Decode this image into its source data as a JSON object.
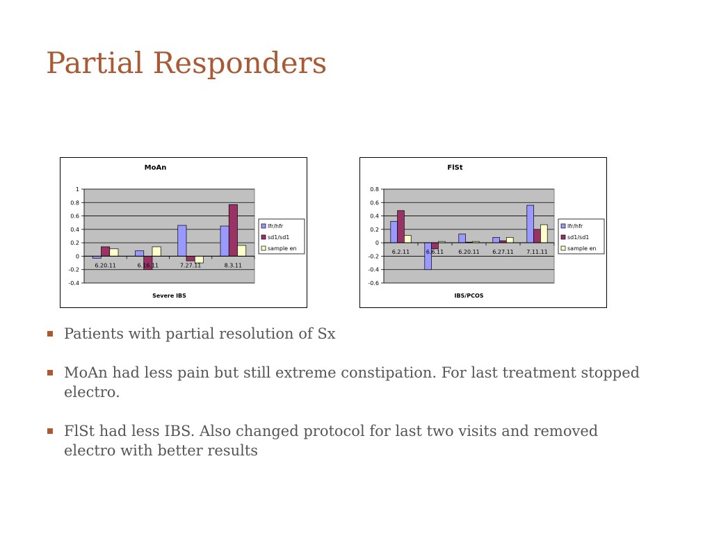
{
  "slide": {
    "title": "Partial Responders"
  },
  "colors": {
    "title": "#a85a34",
    "bullet_marker": "#a85a34",
    "body_text": "#555555",
    "plot_bg": "#c0c0c0",
    "series_lfr": "#9999ff",
    "series_sd1": "#993366",
    "series_sample": "#ffffcc"
  },
  "chart_data": [
    {
      "type": "bar",
      "title": "MoAn",
      "xlabel": "Severe IBS",
      "ylabel": "",
      "ylim": [
        -0.4,
        1
      ],
      "ytick_step": 0.2,
      "yticks": [
        "-0.4",
        "-0.2",
        "0",
        "0.2",
        "0.4",
        "0.6",
        "0.8",
        "1"
      ],
      "categories": [
        "6.20.11",
        "6.16.11",
        "7.27.11",
        "8.3.11"
      ],
      "series": [
        {
          "name": "lfr/hfr",
          "color": "#9999ff",
          "values": [
            -0.03,
            0.08,
            0.46,
            0.45
          ]
        },
        {
          "name": "sd1/sd1",
          "color": "#993366",
          "values": [
            0.14,
            -0.2,
            -0.07,
            0.77
          ]
        },
        {
          "name": "sample en",
          "color": "#ffffcc",
          "values": [
            0.11,
            0.14,
            -0.1,
            0.16
          ]
        }
      ],
      "grid": true,
      "legend_position": "right"
    },
    {
      "type": "bar",
      "title": "FlSt",
      "xlabel": "IBS/PCOS",
      "ylabel": "",
      "ylim": [
        -0.6,
        0.8
      ],
      "ytick_step": 0.2,
      "yticks": [
        "-0.6",
        "-0.4",
        "-0.2",
        "0",
        "0.2",
        "0.4",
        "0.6",
        "0.8"
      ],
      "categories": [
        "6.2.11",
        "6.6.11",
        "6.20.11",
        "6.27.11",
        "7.11.11"
      ],
      "series": [
        {
          "name": "lfr/hfr",
          "color": "#9999ff",
          "values": [
            0.32,
            -0.4,
            0.13,
            0.08,
            0.56
          ]
        },
        {
          "name": "sd1/sd1",
          "color": "#993366",
          "values": [
            0.48,
            -0.09,
            0.01,
            0.03,
            0.2
          ]
        },
        {
          "name": "sample en",
          "color": "#ffffcc",
          "values": [
            0.11,
            0.02,
            0.02,
            0.08,
            0.27
          ]
        }
      ],
      "grid": true,
      "legend_position": "right"
    }
  ],
  "bullets": [
    "Patients with partial resolution of Sx",
    "MoAn had less pain but still extreme constipation. For last treatment stopped electro.",
    "FlSt had less IBS. Also changed protocol for last two visits and removed electro with better results"
  ]
}
